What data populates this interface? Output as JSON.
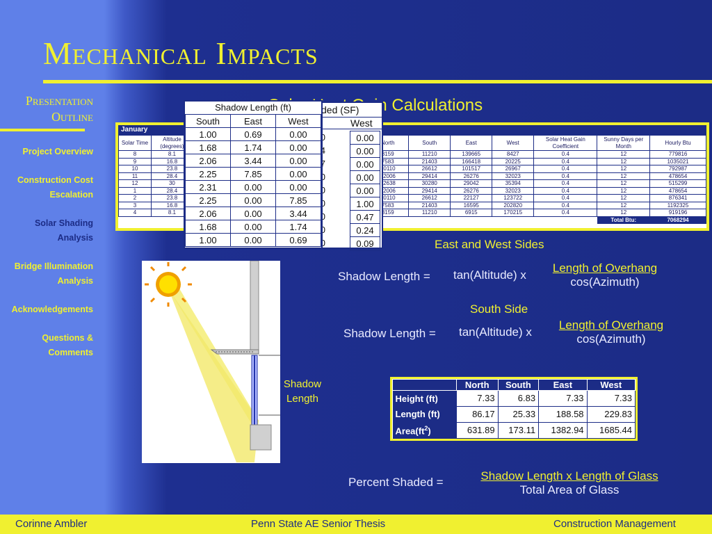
{
  "slide": {
    "title": "Mechanical Impacts",
    "section_title": "Solar Heat Gain Calculations"
  },
  "sidebar": {
    "header_line1": "Presentation",
    "header_line2": "Outline",
    "items": [
      {
        "label": "Project Overview",
        "active": false
      },
      {
        "label": "Construction Cost Escalation",
        "active": false
      },
      {
        "label": "Solar Shading Analysis",
        "active": true
      },
      {
        "label": "Bridge Illumination Analysis",
        "active": false
      },
      {
        "label": "Acknowledgements",
        "active": false
      },
      {
        "label": "Questions & Comments",
        "active": false
      }
    ]
  },
  "january_table": {
    "month": "January",
    "headers": [
      "Solar Time",
      "Altitude (degrees)",
      "A (d",
      "h",
      "South",
      "East",
      "West",
      "North",
      "South",
      "East",
      "West",
      "Solar Heat Gain Coefficient",
      "Sunny Days per Month",
      "Hourly Btu"
    ],
    "group_headers": {
      "factor": "r Heat Gain Factor (Btu/h-ft2)",
      "gain": "Solar Heat Gain (Btu)"
    },
    "rows": [
      [
        "8",
        "8.1",
        "",
        "",
        "75",
        "111",
        "5",
        "3159",
        "11210",
        "139665",
        "8427",
        "0.4",
        "12",
        "779816"
      ],
      [
        "9",
        "16.8",
        "",
        "",
        "160",
        "154",
        "12",
        "7583",
        "21403",
        "166418",
        "20225",
        "0.4",
        "12",
        "1035021"
      ],
      [
        "10",
        "23.8",
        "",
        "",
        "213",
        "124",
        "16",
        "10110",
        "26612",
        "101517",
        "26967",
        "0.4",
        "12",
        "792987"
      ],
      [
        "11",
        "28.4",
        "",
        "",
        "244",
        "61",
        "19",
        "12006",
        "29414",
        "26276",
        "32023",
        "0.4",
        "12",
        "478654"
      ],
      [
        "12",
        "30",
        "",
        "",
        "254",
        "21",
        "21",
        "12638",
        "30280",
        "29042",
        "35394",
        "0.4",
        "12",
        "515299"
      ],
      [
        "1",
        "28.4",
        "",
        "",
        "244",
        "19",
        "61",
        "12006",
        "29414",
        "26276",
        "32023",
        "0.4",
        "12",
        "478654"
      ],
      [
        "2",
        "23.8",
        "",
        "",
        "213",
        "16",
        "124",
        "10110",
        "26612",
        "22127",
        "123722",
        "0.4",
        "12",
        "876341"
      ],
      [
        "3",
        "16.8",
        "",
        "",
        "160",
        "12",
        "154",
        "7583",
        "21403",
        "16595",
        "202820",
        "0.4",
        "12",
        "1192325"
      ],
      [
        "4",
        "8.1",
        "",
        "",
        "75",
        "5",
        "111",
        "3159",
        "11210",
        "6915",
        "170215",
        "0.4",
        "12",
        "919196"
      ]
    ],
    "total_label": "Total Btu:",
    "total_value": "7068294"
  },
  "shaded_sf_table": {
    "caption": "ded (SF)",
    "header_partial": "t",
    "header_west": "West",
    "left_partial": [
      "0",
      "4",
      "7",
      "0",
      "0",
      "0",
      "0",
      "0",
      "0"
    ],
    "west_values": [
      "0.00",
      "0.00",
      "0.00",
      "0.00",
      "0.00",
      "1.00",
      "0.47",
      "0.24",
      "0.09"
    ]
  },
  "shadow_length_table": {
    "caption": "Shadow Length (ft)",
    "headers": [
      "South",
      "East",
      "West"
    ],
    "rows": [
      [
        "1.00",
        "0.69",
        "0.00"
      ],
      [
        "1.68",
        "1.74",
        "0.00"
      ],
      [
        "2.06",
        "3.44",
        "0.00"
      ],
      [
        "2.25",
        "7.85",
        "0.00"
      ],
      [
        "2.31",
        "0.00",
        "0.00"
      ],
      [
        "2.25",
        "0.00",
        "7.85"
      ],
      [
        "2.06",
        "0.00",
        "3.44"
      ],
      [
        "1.68",
        "0.00",
        "1.74"
      ],
      [
        "1.00",
        "0.00",
        "0.69"
      ]
    ]
  },
  "formulas": {
    "east_west_label": "East and West Sides",
    "ew_lhs": "Shadow Length =",
    "ew_term": "tan(Altitude) x",
    "ew_num": "Length of Overhang",
    "ew_den": "cos(Azimuth)",
    "south_label": "South Side",
    "s_lhs": "Shadow Length =",
    "s_term": "tan(Altitude) x",
    "s_num": "Length of Overhang",
    "s_den": "cos(Azimuth)",
    "pct_lhs": "Percent Shaded =",
    "pct_num": "Shadow Length x Length of Glass",
    "pct_den": "Total Area of Glass"
  },
  "diagram": {
    "label_line1": "Shadow",
    "label_line2": "Length",
    "sun_icon": "sun-icon"
  },
  "area_table": {
    "headers": [
      "",
      "North",
      "South",
      "East",
      "West"
    ],
    "rows": [
      {
        "label": "Height (ft)",
        "values": [
          "7.33",
          "6.83",
          "7.33",
          "7.33"
        ]
      },
      {
        "label": "Length (ft)",
        "values": [
          "86.17",
          "25.33",
          "188.58",
          "229.83"
        ]
      },
      {
        "label_main": "Area(ft",
        "label_sup": "2",
        "label_end": ")",
        "values": [
          "631.89",
          "173.11",
          "1382.94",
          "1685.44"
        ]
      }
    ]
  },
  "footer": {
    "left": "Corinne Ambler",
    "center": "Penn State AE Senior Thesis",
    "right": "Construction Management"
  },
  "colors": {
    "accent_yellow": "#f0f030",
    "background_blue": "#1c2c86",
    "sidebar_blue": "#5f80e8"
  }
}
